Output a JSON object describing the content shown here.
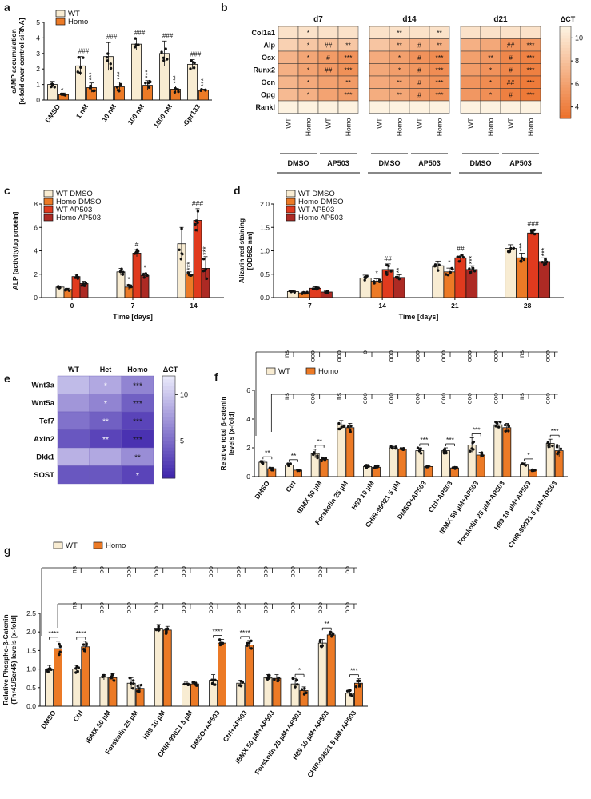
{
  "colors": {
    "wt": "#f8ecd2",
    "homo": "#ec7a26",
    "wt_ap": "#e03a1e",
    "homo_ap": "#ad2a24",
    "black": "#111111"
  },
  "chart_data": [
    {
      "id": "a",
      "type": "bar",
      "panel_label": "a",
      "ylabel": [
        "cAMP accumulation",
        "[x-fold over control siRNA]"
      ],
      "ylim": [
        0,
        5
      ],
      "yticks": [
        0,
        1,
        2,
        3,
        4,
        5
      ],
      "legend": [
        "WT",
        "Homo"
      ],
      "categories": [
        "DMSO",
        "1 nM",
        "10 nM",
        "100 nM",
        "1000 nM",
        "-Gpr133"
      ],
      "series": [
        {
          "name": "WT",
          "values": [
            1.0,
            2.2,
            2.8,
            3.6,
            3.0,
            2.3
          ],
          "err": [
            0.2,
            0.6,
            0.9,
            0.4,
            0.8,
            0.3
          ]
        },
        {
          "name": "Homo",
          "values": [
            0.35,
            0.8,
            0.85,
            0.95,
            0.7,
            0.65
          ],
          "err": [
            0.1,
            0.3,
            0.3,
            0.3,
            0.2,
            0.05
          ]
        }
      ],
      "sig_top": [
        "",
        "###",
        "###",
        "###",
        "###",
        "###"
      ],
      "sig_bar": [
        "*",
        "***",
        "***",
        "***",
        "***",
        "***"
      ]
    },
    {
      "id": "c",
      "type": "bar",
      "panel_label": "c",
      "ylabel": [
        "ALP [activity/µg protein]"
      ],
      "xlabel": "Time [days]",
      "ylim": [
        0,
        8
      ],
      "yticks": [
        0,
        2,
        4,
        6,
        8
      ],
      "legend": [
        "WT DMSO",
        "Homo DMSO",
        "WT AP503",
        "Homo AP503"
      ],
      "categories": [
        "0",
        "7",
        "14"
      ],
      "series": [
        {
          "name": "WT DMSO",
          "values": [
            0.9,
            2.2,
            4.6
          ],
          "err": [
            0.1,
            0.3,
            1.4
          ]
        },
        {
          "name": "Homo DMSO",
          "values": [
            0.7,
            0.9,
            2.0
          ],
          "err": [
            0.1,
            0.2,
            0.2
          ]
        },
        {
          "name": "WT AP503",
          "values": [
            1.8,
            3.8,
            6.6
          ],
          "err": [
            0.2,
            0.3,
            1.0
          ]
        },
        {
          "name": "Homo AP503",
          "values": [
            1.2,
            1.9,
            2.5
          ],
          "err": [
            0.2,
            0.2,
            1.0
          ]
        }
      ],
      "annotations": [
        {
          "cat": 1,
          "series": 1,
          "text": "*"
        },
        {
          "cat": 1,
          "series": 2,
          "text": "#"
        },
        {
          "cat": 1,
          "series": 3,
          "text": "*"
        },
        {
          "cat": 2,
          "series": 1,
          "text": "***"
        },
        {
          "cat": 2,
          "series": 2,
          "text": "###"
        },
        {
          "cat": 2,
          "series": 3,
          "text": "***"
        }
      ]
    },
    {
      "id": "d",
      "type": "bar",
      "panel_label": "d",
      "ylabel": [
        "Alizarin red staining",
        "[OD562 nm]"
      ],
      "xlabel": "Time [days]",
      "ylim": [
        0,
        2.0
      ],
      "yticks": [
        0.0,
        0.5,
        1.0,
        1.5,
        2.0
      ],
      "legend": [
        "WT DMSO",
        "Homo DMSO",
        "WT AP503",
        "Homo AP503"
      ],
      "categories": [
        "7",
        "14",
        "21",
        "28"
      ],
      "series": [
        {
          "name": "WT DMSO",
          "values": [
            0.13,
            0.42,
            0.68,
            1.05
          ],
          "err": [
            0.02,
            0.06,
            0.1,
            0.08
          ]
        },
        {
          "name": "Homo DMSO",
          "values": [
            0.1,
            0.35,
            0.55,
            0.85
          ],
          "err": [
            0.02,
            0.05,
            0.08,
            0.1
          ]
        },
        {
          "name": "WT AP503",
          "values": [
            0.2,
            0.6,
            0.85,
            1.38
          ],
          "err": [
            0.03,
            0.12,
            0.08,
            0.08
          ]
        },
        {
          "name": "Homo AP503",
          "values": [
            0.12,
            0.43,
            0.6,
            0.77
          ],
          "err": [
            0.02,
            0.06,
            0.08,
            0.08
          ]
        }
      ],
      "annotations": [
        {
          "cat": 1,
          "series": 1,
          "text": "*"
        },
        {
          "cat": 1,
          "series": 2,
          "text": "##"
        },
        {
          "cat": 1,
          "series": 3,
          "text": "**"
        },
        {
          "cat": 2,
          "series": 1,
          "text": "*"
        },
        {
          "cat": 2,
          "series": 2,
          "text": "##"
        },
        {
          "cat": 2,
          "series": 3,
          "text": "***"
        },
        {
          "cat": 3,
          "series": 1,
          "text": "***"
        },
        {
          "cat": 3,
          "series": 2,
          "text": "###"
        },
        {
          "cat": 3,
          "series": 3,
          "text": "***"
        }
      ]
    },
    {
      "id": "b",
      "type": "heatmap",
      "panel_label": "b",
      "rows": [
        "Col1a1",
        "Alp",
        "Osx",
        "Runx2",
        "Ocn",
        "Opg",
        "Rankl"
      ],
      "groups": [
        "d7",
        "d14",
        "d21"
      ],
      "cols": [
        "WT",
        "Homo",
        "WT",
        "Homo"
      ],
      "treatments": [
        "DMSO",
        "AP503"
      ],
      "scale": {
        "title": "ΔCT",
        "min": 3,
        "max": 11,
        "ticks": [
          4,
          6,
          8,
          10
        ]
      },
      "values": [
        [
          [
            10,
            10,
            10,
            10
          ],
          [
            10,
            10,
            10,
            10
          ],
          [
            10,
            10,
            10,
            10
          ]
        ],
        [
          [
            9,
            8.4,
            8,
            8.4
          ],
          [
            8.3,
            7.4,
            7,
            7
          ],
          [
            7,
            6.5,
            5.2,
            5.4
          ]
        ],
        [
          [
            7.2,
            6.4,
            5.7,
            5.2
          ],
          [
            6.7,
            6,
            5.2,
            4.8
          ],
          [
            6,
            5.5,
            4.5,
            4.2
          ]
        ],
        [
          [
            7,
            6.2,
            5.6,
            5.1
          ],
          [
            6.5,
            5.9,
            5.4,
            4.9
          ],
          [
            5.8,
            5.2,
            4.5,
            4.1
          ]
        ],
        [
          [
            7.3,
            6.6,
            6.1,
            5.7
          ],
          [
            6.6,
            6.1,
            5.6,
            5.1
          ],
          [
            5.3,
            4.8,
            4.1,
            3.8
          ]
        ],
        [
          [
            7.6,
            7,
            6.2,
            5.8
          ],
          [
            6.8,
            6.4,
            5.6,
            5.1
          ],
          [
            5.5,
            5,
            4.1,
            3.7
          ]
        ],
        [
          [
            11,
            11,
            11,
            11
          ],
          [
            11,
            11,
            11,
            11
          ],
          [
            11,
            11,
            11,
            11
          ]
        ]
      ],
      "stars": [
        [
          [
            "",
            "*",
            "",
            ""
          ],
          [
            "",
            "**",
            "",
            "**"
          ],
          [
            "",
            "",
            "",
            ""
          ]
        ],
        [
          [
            "",
            "*",
            "##",
            "**"
          ],
          [
            "",
            "**",
            "#",
            "**"
          ],
          [
            "",
            "",
            "##",
            "***"
          ]
        ],
        [
          [
            "",
            "*",
            "#",
            "***"
          ],
          [
            "",
            "*",
            "#",
            "***"
          ],
          [
            "",
            "**",
            "#",
            "***"
          ]
        ],
        [
          [
            "",
            "*",
            "##",
            "***"
          ],
          [
            "",
            "*",
            "#",
            "***"
          ],
          [
            "",
            "*",
            "#",
            "***"
          ]
        ],
        [
          [
            "",
            "*",
            "",
            "**"
          ],
          [
            "",
            "**",
            "#",
            "***"
          ],
          [
            "",
            "*",
            "##",
            "***"
          ]
        ],
        [
          [
            "",
            "*",
            "",
            "***"
          ],
          [
            "",
            "**",
            "#",
            "***"
          ],
          [
            "",
            "*",
            "#",
            "***"
          ]
        ],
        [
          [
            "",
            "",
            "",
            ""
          ],
          [
            "",
            "",
            "",
            ""
          ],
          [
            "",
            "",
            "",
            ""
          ]
        ]
      ]
    },
    {
      "id": "e",
      "type": "heatmap",
      "panel_label": "e",
      "rows": [
        "Wnt3a",
        "Wnt5a",
        "Tcf7",
        "Axin2",
        "Dkk1",
        "SOST"
      ],
      "cols": [
        "WT",
        "Het",
        "Homo"
      ],
      "scale": {
        "title": "ΔCT",
        "min": 1,
        "max": 12,
        "ticks": [
          5,
          10
        ]
      },
      "values": [
        [
          9.5,
          8.5,
          6.5
        ],
        [
          7.5,
          6.5,
          4.5
        ],
        [
          5.5,
          4.5,
          3
        ],
        [
          4,
          3,
          2
        ],
        [
          9,
          8.5,
          7
        ],
        [
          4,
          4,
          3
        ]
      ],
      "stars": [
        [
          "",
          "*",
          "***"
        ],
        [
          "",
          "*",
          "***"
        ],
        [
          "",
          "**",
          "***"
        ],
        [
          "",
          "**",
          "***"
        ],
        [
          "",
          "",
          "**"
        ],
        [
          "",
          "",
          "*"
        ]
      ]
    },
    {
      "id": "f",
      "type": "bar",
      "panel_label": "f",
      "ylabel": [
        "Relative total β-catenin",
        "levels [x-fold]"
      ],
      "ylim": [
        0,
        6
      ],
      "yticks": [
        0,
        2,
        4,
        6
      ],
      "legend": [
        "WT",
        "Homo"
      ],
      "categories": [
        "DMSO",
        "Ctrl",
        "IBMX 50 µM",
        "Forskolin 25 µM",
        "H89 10 µM",
        "CHIR-99021 5 µM",
        "DMSO+AP503",
        "Ctrl+AP503",
        "IBMX 50 µM+AP503",
        "Forskolin 25 µM+AP503",
        "H89 10 µM+AP503",
        "CHIR-99021 5 µM+AP503"
      ],
      "series": [
        {
          "name": "WT",
          "values": [
            1.0,
            0.8,
            1.6,
            3.6,
            0.7,
            2.0,
            1.8,
            1.8,
            2.2,
            3.6,
            0.85,
            2.3
          ],
          "err": [
            0.1,
            0.1,
            0.3,
            0.3,
            0.1,
            0.1,
            0.2,
            0.2,
            0.5,
            0.2,
            0.1,
            0.3
          ]
        },
        {
          "name": "Homo",
          "values": [
            0.55,
            0.45,
            1.2,
            3.4,
            0.65,
            1.9,
            0.7,
            0.6,
            1.5,
            3.4,
            0.45,
            1.8
          ],
          "err": [
            0.1,
            0.05,
            0.15,
            0.3,
            0.1,
            0.1,
            0.05,
            0.05,
            0.2,
            0.3,
            0.05,
            0.4
          ]
        }
      ],
      "pair_sig": [
        "**",
        "**",
        "**",
        "",
        "",
        "",
        "***",
        "***",
        "***",
        "",
        "*",
        "***"
      ],
      "top_row1": [
        "ns",
        "ooo",
        "ooo",
        "o",
        "ooo",
        "ooo",
        "ooo",
        "ooo",
        "ooo",
        "ns",
        "ooo"
      ],
      "top_row2": [
        "ns",
        "ooo",
        "ns",
        "ooo",
        "ooo",
        "ooo",
        "ooo",
        "ooo",
        "ooo",
        "ns",
        "ooo"
      ]
    },
    {
      "id": "g",
      "type": "bar",
      "panel_label": "g",
      "ylabel": [
        "Relative Phospho-β-Catenin",
        "(Thr41/Ser45) levels [x-fold]"
      ],
      "ylim": [
        0,
        2.5
      ],
      "yticks": [
        0.0,
        0.5,
        1.0,
        1.5,
        2.0,
        2.5
      ],
      "legend": [
        "WT",
        "Homo"
      ],
      "categories": [
        "DMSO",
        "Ctrl",
        "IBMX 50 µM",
        "Forskolin 25 µM",
        "H89 10 µM",
        "CHIR-99021 5 µM",
        "DMSO+AP503",
        "Ctrl+AP503",
        "IBMX 50 µM+AP503",
        "Forskolin 25 µM+AP503",
        "H89 10 µM+AP503",
        "CHIR-99021 5 µM+AP503"
      ],
      "series": [
        {
          "name": "WT",
          "values": [
            1.0,
            1.0,
            0.78,
            0.62,
            2.1,
            0.6,
            0.7,
            0.62,
            0.77,
            0.6,
            1.7,
            0.35
          ],
          "err": [
            0.1,
            0.1,
            0.07,
            0.15,
            0.1,
            0.05,
            0.15,
            0.08,
            0.08,
            0.15,
            0.1,
            0.08
          ]
        },
        {
          "name": "Homo",
          "values": [
            1.55,
            1.6,
            0.77,
            0.48,
            2.05,
            0.6,
            1.7,
            1.65,
            0.75,
            0.42,
            1.92,
            0.62
          ],
          "err": [
            0.2,
            0.15,
            0.1,
            0.1,
            0.1,
            0.05,
            0.1,
            0.12,
            0.1,
            0.1,
            0.08,
            0.12
          ]
        }
      ],
      "pair_sig": [
        "****",
        "****",
        "",
        "",
        "",
        "",
        "****",
        "****",
        "",
        "*",
        "**",
        "***"
      ],
      "top_row1": [
        "ns",
        "oo",
        "ooo",
        "ooo",
        "ooo",
        "ooo",
        "ooo",
        "ooo",
        "ooo",
        "ooo",
        "oo"
      ],
      "top_row2": [
        "ns",
        "ooo",
        "ooo",
        "ooo",
        "ooo",
        "ooo",
        "ooo",
        "ooo",
        "ooo",
        "ooo",
        "ooo"
      ]
    }
  ]
}
